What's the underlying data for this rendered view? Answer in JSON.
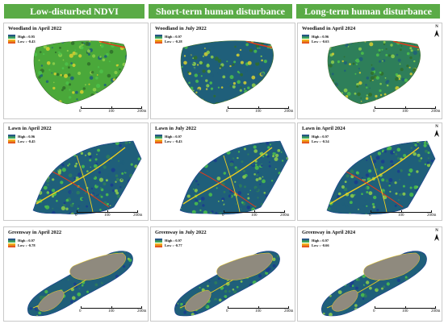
{
  "headers": [
    "Low-disturbed NDVI",
    "Short-term human disturbance NDVI",
    "Long-term human disturbance NDVI"
  ],
  "north_label": "N",
  "legend_colors": {
    "high": "#1a3c8f",
    "mid": "#4cc24a",
    "low": "#f0d020",
    "lowest": "#e23a1a"
  },
  "fill_colors": {
    "woodland_lush": "#4aa83a",
    "woodland_mixed": "#2e7f5a",
    "woodland_dark": "#1f5f7a",
    "water": "#8f8a7e"
  },
  "scale": {
    "labels": [
      "0",
      "100",
      "200m"
    ]
  },
  "panels": [
    {
      "id": "woodland-apr-2022",
      "title": "Woodland in April 2022",
      "high": "High : 0.95",
      "low": "Low : -0.43",
      "fill": "woodland_lush"
    },
    {
      "id": "woodland-jul-2022",
      "title": "Woodland in July 2022",
      "high": "High : 0.97",
      "low": "Low : -0.28",
      "fill": "woodland_dark"
    },
    {
      "id": "woodland-apr-2024",
      "title": "Woodland in April 2024",
      "high": "High : 0.96",
      "low": "Low : -0.63",
      "fill": "woodland_mixed"
    },
    {
      "id": "lawn-apr-2022",
      "title": "Lawn in April 2022",
      "high": "High : 0.96",
      "low": "Low : -0.45",
      "fill": "woodland_dark"
    },
    {
      "id": "lawn-jul-2022",
      "title": "Lawn in July 2022",
      "high": "High : 0.97",
      "low": "Low : -0.43",
      "fill": "woodland_dark"
    },
    {
      "id": "lawn-apr-2024",
      "title": "Lawn in April 2024",
      "high": "High : 0.97",
      "low": "Low : -0.54",
      "fill": "woodland_dark"
    },
    {
      "id": "greenway-apr-2022",
      "title": "Greenway in April 2022",
      "high": "High : 0.97",
      "low": "Low : -0.78",
      "fill": "woodland_dark"
    },
    {
      "id": "greenway-jul-2022",
      "title": "Greenway in July 2022",
      "high": "High : 0.97",
      "low": "Low : -0.77",
      "fill": "woodland_dark"
    },
    {
      "id": "greenway-apr-2024",
      "title": "Greenway in April 2024",
      "high": "High : 0.97",
      "low": "Low : -0.66",
      "fill": "woodland_dark"
    }
  ]
}
